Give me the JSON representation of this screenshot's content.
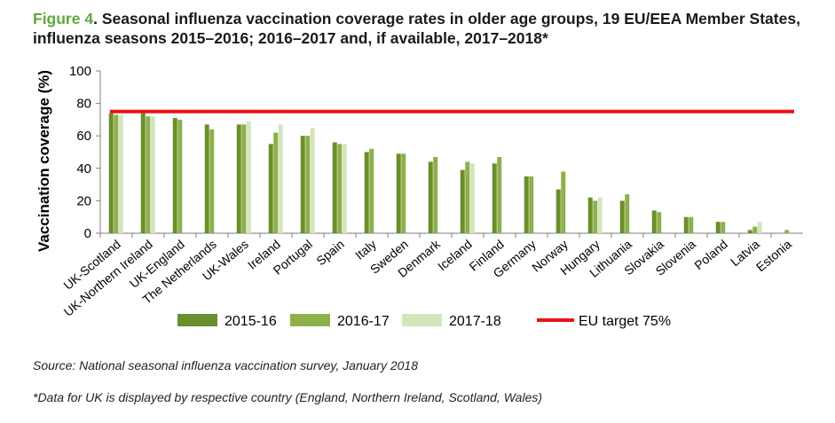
{
  "title": {
    "figure_label": "Figure 4",
    "text": "Seasonal influenza vaccination coverage rates in older age groups, 19 EU/EEA Member States, influenza seasons 2015–2016; 2016–2017 and, if available, 2017–2018*"
  },
  "source": "Source: National seasonal influenza vaccination survey, January 2018",
  "footnote": "*Data for UK is displayed by respective country (England, Northern Ireland, Scotland, Wales)",
  "colors": {
    "s1": "#6b8e2e",
    "s2": "#8db04a",
    "s3": "#d3e6bb",
    "target": "#e8141a",
    "axis": "#7f7f7f"
  },
  "chart_data": {
    "type": "bar",
    "ylabel": "Vaccination coverage (%)",
    "xlabel": "",
    "ylim": [
      0,
      100
    ],
    "yticks": [
      0,
      20,
      40,
      60,
      80,
      100
    ],
    "categories": [
      "UK-Scotland",
      "UK-Northern Ireland",
      "UK-England",
      "The Netherlands",
      "UK-Wales",
      "Ireland",
      "Portugal",
      "Spain",
      "Italy",
      "Sweden",
      "Denmark",
      "Iceland",
      "Finland",
      "Germany",
      "Norway",
      "Hungary",
      "Lithuania",
      "Slovakia",
      "Slovenia",
      "Poland",
      "Latvia",
      "Estonia"
    ],
    "series": [
      {
        "name": "2015-16",
        "values": [
          74,
          75,
          71,
          67,
          67,
          55,
          60,
          56,
          50,
          49,
          44,
          39,
          43,
          35,
          27,
          22,
          20,
          14,
          10,
          7,
          2,
          0
        ]
      },
      {
        "name": "2016-17",
        "values": [
          73,
          72,
          70,
          64,
          67,
          62,
          60,
          55,
          52,
          49,
          47,
          44,
          47,
          35,
          38,
          20,
          24,
          13,
          10,
          7,
          4,
          2
        ]
      },
      {
        "name": "2017-18",
        "values": [
          73,
          72,
          null,
          null,
          69,
          67,
          65,
          55,
          null,
          null,
          null,
          43,
          null,
          null,
          null,
          22,
          null,
          null,
          null,
          null,
          7,
          null
        ]
      }
    ],
    "target": {
      "name": "EU target 75%",
      "value": 75
    },
    "legend_position": "bottom"
  }
}
